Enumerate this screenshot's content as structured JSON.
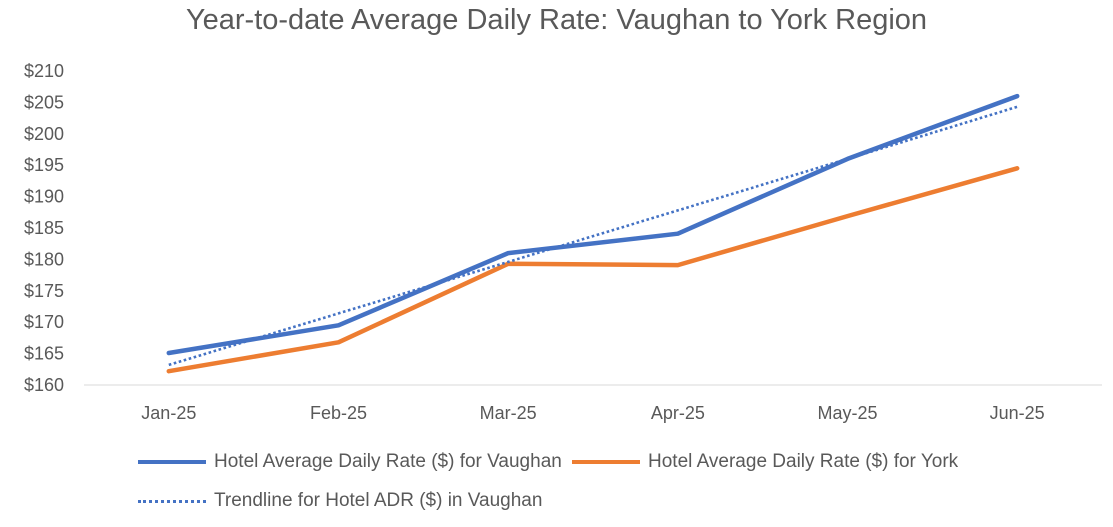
{
  "chart_data": {
    "type": "line",
    "title": "Year-to-date Average Daily Rate: Vaughan to York Region",
    "categories": [
      "Jan-25",
      "Feb-25",
      "Mar-25",
      "Apr-25",
      "May-25",
      "Jun-25"
    ],
    "ylim": [
      160,
      210
    ],
    "yticks": [
      160,
      165,
      170,
      175,
      180,
      185,
      190,
      195,
      200,
      205,
      210
    ],
    "ytick_labels": [
      "$160",
      "$165",
      "$170",
      "$175",
      "$180",
      "$185",
      "$190",
      "$195",
      "$200",
      "$205",
      "$210"
    ],
    "grid": false,
    "legend_position": "bottom",
    "series": [
      {
        "name": "Hotel Average Daily Rate ($) for Vaughan",
        "color": "#4472c4",
        "style": "solid",
        "values": [
          165.1,
          169.5,
          181.0,
          184.1,
          196.0,
          206.0
        ]
      },
      {
        "name": "Hotel Average Daily Rate ($) for York",
        "color": "#ed7d31",
        "style": "solid",
        "values": [
          162.2,
          166.8,
          179.3,
          179.1,
          186.9,
          194.5
        ]
      },
      {
        "name": "Trendline for Hotel ADR ($) in Vaughan",
        "color": "#4472c4",
        "style": "dotted",
        "values": [
          163.2,
          171.4,
          179.6,
          187.8,
          196.0,
          204.3
        ]
      }
    ]
  }
}
